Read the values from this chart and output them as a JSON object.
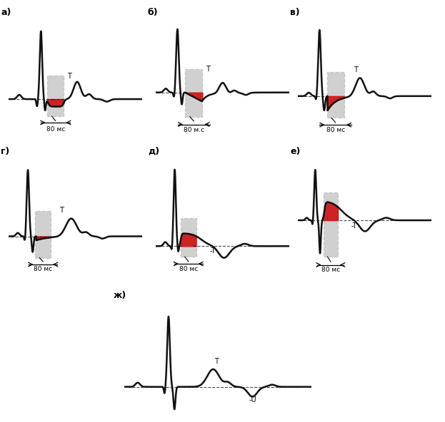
{
  "panels": [
    "а)",
    "б)",
    "в)",
    "г)",
    "д)",
    "е)",
    "ж)"
  ],
  "background_color": "#ffffff",
  "gray_box_color": "#b8b8b8",
  "red_fill_color": "#cc1111",
  "ecg_line_color": "#111111",
  "label_80ms": "80 мс",
  "label_80ms_dot": "80 м.с",
  "label_T": "T",
  "label_negT": "-T",
  "label_negU": "-U",
  "fig_w": 6.23,
  "fig_h": 5.92,
  "dpi": 100
}
